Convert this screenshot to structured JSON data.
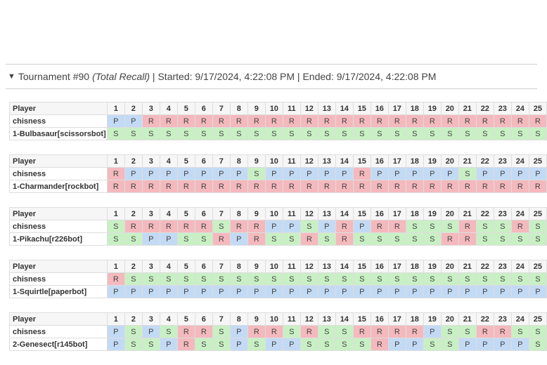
{
  "summary": {
    "toggle": "▼",
    "title": "Tournament #90",
    "mode": "(Total Recall)",
    "rest": " | Started: 9/17/2024, 4:22:08 PM | Ended: 9/17/2024, 4:22:08 PM"
  },
  "colors": {
    "R": "#f4b9bd",
    "P": "#c3daf5",
    "S": "#c9f0c4"
  },
  "rounds": [
    "1",
    "2",
    "3",
    "4",
    "5",
    "6",
    "7",
    "8",
    "9",
    "10",
    "11",
    "12",
    "13",
    "14",
    "15",
    "16",
    "17",
    "18",
    "19",
    "20",
    "21",
    "22",
    "23",
    "24",
    "25"
  ],
  "matches": [
    {
      "header": "Player",
      "players": [
        {
          "name": "chisness",
          "moves": [
            "P",
            "P",
            "R",
            "R",
            "R",
            "R",
            "R",
            "R",
            "R",
            "R",
            "R",
            "R",
            "R",
            "R",
            "R",
            "R",
            "R",
            "R",
            "R",
            "R",
            "R",
            "R",
            "R",
            "R",
            "R"
          ]
        },
        {
          "name": "1-Bulbasaur[scissorsbot]",
          "moves": [
            "S",
            "S",
            "S",
            "S",
            "S",
            "S",
            "S",
            "S",
            "S",
            "S",
            "S",
            "S",
            "S",
            "S",
            "S",
            "S",
            "S",
            "S",
            "S",
            "S",
            "S",
            "S",
            "S",
            "S",
            "S"
          ]
        }
      ]
    },
    {
      "header": "Player",
      "players": [
        {
          "name": "chisness",
          "moves": [
            "R",
            "P",
            "P",
            "P",
            "P",
            "P",
            "P",
            "P",
            "S",
            "P",
            "P",
            "P",
            "P",
            "P",
            "R",
            "P",
            "P",
            "P",
            "P",
            "P",
            "S",
            "P",
            "P",
            "P",
            "P"
          ]
        },
        {
          "name": "1-Charmander[rockbot]",
          "moves": [
            "R",
            "R",
            "R",
            "R",
            "R",
            "R",
            "R",
            "R",
            "R",
            "R",
            "R",
            "R",
            "R",
            "R",
            "R",
            "R",
            "R",
            "R",
            "R",
            "R",
            "R",
            "R",
            "R",
            "R",
            "R"
          ]
        }
      ]
    },
    {
      "header": "Player",
      "players": [
        {
          "name": "chisness",
          "moves": [
            "S",
            "R",
            "R",
            "R",
            "R",
            "R",
            "S",
            "R",
            "R",
            "P",
            "P",
            "S",
            "P",
            "R",
            "P",
            "R",
            "R",
            "S",
            "S",
            "S",
            "R",
            "S",
            "S",
            "R",
            "S"
          ]
        },
        {
          "name": "1-Pikachu[r226bot]",
          "moves": [
            "S",
            "S",
            "P",
            "P",
            "S",
            "S",
            "R",
            "P",
            "R",
            "S",
            "S",
            "R",
            "S",
            "R",
            "S",
            "S",
            "S",
            "S",
            "S",
            "R",
            "R",
            "S",
            "S",
            "S",
            "S"
          ]
        }
      ]
    },
    {
      "header": "Player",
      "players": [
        {
          "name": "chisness",
          "moves": [
            "R",
            "S",
            "S",
            "S",
            "S",
            "S",
            "S",
            "S",
            "S",
            "S",
            "S",
            "S",
            "S",
            "S",
            "S",
            "S",
            "S",
            "S",
            "S",
            "S",
            "S",
            "S",
            "S",
            "S",
            "S"
          ]
        },
        {
          "name": "1-Squirtle[paperbot]",
          "moves": [
            "P",
            "P",
            "P",
            "P",
            "P",
            "P",
            "P",
            "P",
            "P",
            "P",
            "P",
            "P",
            "P",
            "P",
            "P",
            "P",
            "P",
            "P",
            "P",
            "P",
            "P",
            "P",
            "P",
            "P",
            "P"
          ]
        }
      ]
    },
    {
      "header": "Player",
      "players": [
        {
          "name": "chisness",
          "moves": [
            "P",
            "S",
            "P",
            "S",
            "R",
            "R",
            "S",
            "P",
            "R",
            "R",
            "S",
            "R",
            "S",
            "S",
            "R",
            "R",
            "R",
            "R",
            "P",
            "S",
            "S",
            "R",
            "R",
            "S",
            "S"
          ]
        },
        {
          "name": "2-Genesect[r145bot]",
          "moves": [
            "P",
            "S",
            "S",
            "P",
            "R",
            "S",
            "S",
            "P",
            "S",
            "P",
            "P",
            "S",
            "S",
            "S",
            "S",
            "R",
            "P",
            "P",
            "S",
            "S",
            "P",
            "P",
            "P",
            "P",
            "S"
          ]
        }
      ]
    }
  ]
}
